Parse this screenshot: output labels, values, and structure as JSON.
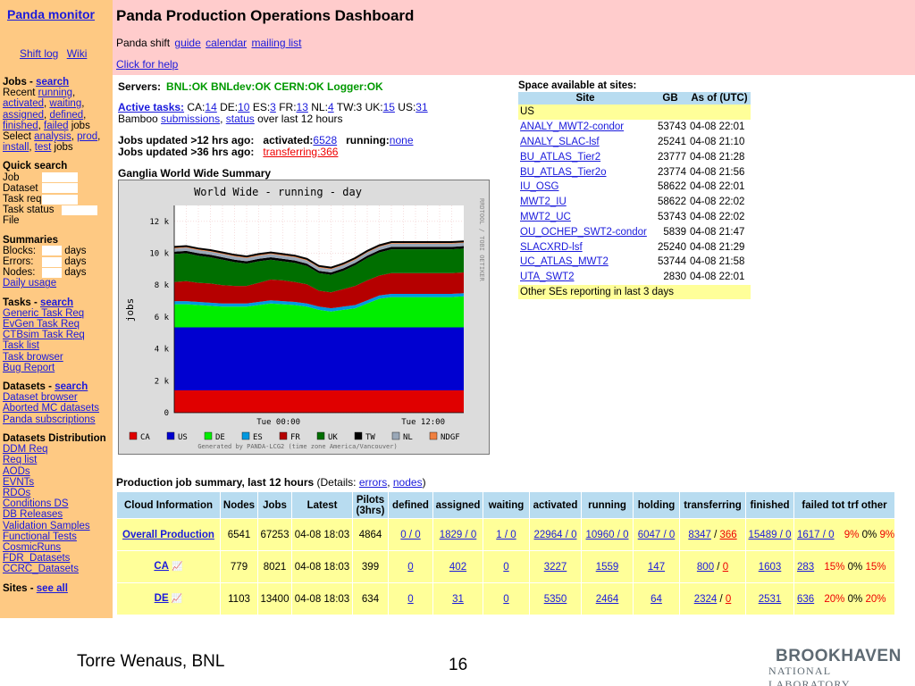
{
  "sidebar": {
    "brand": "Panda monitor",
    "shift_log": "Shift log",
    "wiki": "Wiki",
    "jobs": {
      "heading": "Jobs",
      "search": "search",
      "recent_prefix": "Recent",
      "running": "running",
      "activated": "activated",
      "waiting": "waiting",
      "assigned": "assigned",
      "defined": "defined",
      "finished": "finished",
      "failed": "failed",
      "jobs_word": "jobs",
      "select_prefix": "Select",
      "analysis": "analysis",
      "prod": "prod",
      "install": "install",
      "test": "test",
      "jobs_word2": "jobs"
    },
    "quick": {
      "heading": "Quick search",
      "fields": [
        "Job",
        "Dataset",
        "Task req",
        "Task status",
        "File"
      ]
    },
    "summaries": {
      "heading": "Summaries",
      "rows": [
        {
          "label": "Blocks:",
          "unit": "days"
        },
        {
          "label": "Errors:",
          "unit": "days"
        },
        {
          "label": "Nodes:",
          "unit": "days"
        }
      ],
      "daily": "Daily usage"
    },
    "tasks": {
      "heading": "Tasks",
      "search": "search",
      "links": [
        "Generic Task Req",
        "EvGen Task Req",
        "CTBsim Task Req",
        "Task list",
        "Task browser",
        "Bug Report"
      ]
    },
    "datasets": {
      "heading": "Datasets",
      "search": "search",
      "links": [
        "Dataset browser",
        "Aborted MC datasets",
        "Panda subscriptions"
      ]
    },
    "distribution": {
      "heading": "Datasets Distribution",
      "links": [
        "DDM Req",
        "Req list",
        "AODs",
        "EVNTs",
        "RDOs",
        "Conditions DS",
        "DB Releases",
        "Validation Samples",
        "Functional Tests",
        "CosmicRuns",
        "FDR_Datasets",
        "CCRC_Datasets"
      ]
    },
    "sites": {
      "heading": "Sites",
      "see_all": "see all"
    }
  },
  "header": {
    "title": "Panda Production Operations Dashboard",
    "shift_prefix": "Panda shift",
    "guide": "guide",
    "calendar": "calendar",
    "mailing": "mailing list",
    "help": "Click for help"
  },
  "servers": {
    "label": "Servers:",
    "status": "BNL:OK BNLdev:OK CERN:OK  Logger:OK"
  },
  "active_tasks": {
    "label": "Active tasks:",
    "items": [
      {
        "k": "CA:",
        "v": "14"
      },
      {
        "k": "DE:",
        "v": "10"
      },
      {
        "k": "ES:",
        "v": "3"
      },
      {
        "k": "FR:",
        "v": "13"
      },
      {
        "k": "NL:",
        "v": "4"
      },
      {
        "k": "TW:",
        "v": "3"
      },
      {
        "k": "UK:",
        "v": "15"
      },
      {
        "k": "US:",
        "v": "31"
      }
    ],
    "bamboo": "Bamboo",
    "submissions": "submissions",
    "status": "status",
    "suffix": "over last 12 hours"
  },
  "jobs_updated": {
    "line1_label": "Jobs updated >12 hrs ago:",
    "activated_label": "activated:",
    "activated_val": "6528",
    "running_label": "running:",
    "running_val": "none",
    "line2_label": "Jobs updated >36 hrs ago:",
    "transferring": "transferring:366"
  },
  "ganglia": {
    "heading": "Ganglia World Wide Summary",
    "plot_title": "World Wide - running - day",
    "side_text_left": "RRDTOOL / TOBI OETIKER",
    "footer_text": "Generated by PANDA-LCG2 (time zone America/Vancouver)"
  },
  "chart_data": {
    "type": "area",
    "title": "World Wide - running - day",
    "ylabel": "jobs",
    "xlabel": "",
    "x_ticks": [
      "Tue 00:00",
      "Tue 12:00"
    ],
    "y_ticks": [
      "0",
      "2 k",
      "4 k",
      "6 k",
      "8 k",
      "10 k",
      "12 k"
    ],
    "ylim": [
      0,
      13000
    ],
    "stacked": true,
    "legend_position": "bottom",
    "series": [
      {
        "name": "CA",
        "color": "#e00000",
        "values": [
          1400,
          1400,
          1400,
          1400,
          1400,
          1400,
          1400,
          1400,
          1400,
          1400,
          1400,
          1400,
          1400,
          1400,
          1400,
          1400,
          1400,
          1400,
          1400,
          1400,
          1400,
          1400,
          1400,
          1400,
          1400
        ]
      },
      {
        "name": "US",
        "color": "#0000d0",
        "values": [
          3950,
          3950,
          3950,
          3950,
          3950,
          3950,
          3950,
          3950,
          3950,
          3950,
          3950,
          3950,
          3950,
          3950,
          3950,
          3950,
          3950,
          3950,
          3950,
          3950,
          3950,
          3950,
          3950,
          3950,
          3950
        ]
      },
      {
        "name": "DE",
        "color": "#00ee00",
        "values": [
          1450,
          1450,
          1400,
          1350,
          1300,
          1300,
          1300,
          1400,
          1500,
          1450,
          1400,
          1300,
          1100,
          1000,
          1100,
          1200,
          1500,
          1800,
          1900,
          1900,
          1900,
          1900,
          1900,
          1900,
          1950
        ]
      },
      {
        "name": "ES",
        "color": "#0099e0",
        "values": [
          200,
          200,
          200,
          200,
          200,
          200,
          200,
          200,
          200,
          200,
          200,
          200,
          200,
          200,
          200,
          200,
          200,
          200,
          200,
          200,
          200,
          200,
          200,
          200,
          200
        ]
      },
      {
        "name": "FR",
        "color": "#b50000",
        "values": [
          1200,
          1250,
          1200,
          1200,
          1150,
          1100,
          1100,
          1200,
          1300,
          1300,
          1250,
          1200,
          1000,
          1000,
          1100,
          1200,
          1250,
          1250,
          1300,
          1300,
          1300,
          1300,
          1300,
          1300,
          1300
        ]
      },
      {
        "name": "UK",
        "color": "#006f00",
        "values": [
          1750,
          1750,
          1700,
          1650,
          1600,
          1500,
          1400,
          1350,
          1250,
          1200,
          1200,
          1150,
          1100,
          1100,
          1150,
          1300,
          1400,
          1450,
          1500,
          1500,
          1500,
          1500,
          1500,
          1500,
          1500
        ]
      },
      {
        "name": "TW",
        "color": "#000000",
        "values": [
          150,
          150,
          150,
          150,
          150,
          150,
          150,
          150,
          150,
          150,
          150,
          150,
          150,
          150,
          150,
          150,
          150,
          150,
          150,
          150,
          150,
          150,
          150,
          150,
          150
        ]
      },
      {
        "name": "NL",
        "color": "#9aa8b8",
        "values": [
          200,
          200,
          200,
          200,
          200,
          200,
          200,
          200,
          200,
          200,
          200,
          200,
          200,
          200,
          200,
          200,
          200,
          200,
          200,
          200,
          200,
          200,
          200,
          200,
          200
        ]
      },
      {
        "name": "NDGF",
        "color": "#f08040",
        "values": [
          100,
          100,
          100,
          100,
          100,
          100,
          100,
          100,
          100,
          100,
          100,
          100,
          100,
          100,
          100,
          100,
          100,
          100,
          100,
          100,
          100,
          100,
          100,
          100,
          100
        ]
      }
    ]
  },
  "space": {
    "heading": "Space available at sites:",
    "columns": [
      "Site",
      "GB",
      "As of (UTC)"
    ],
    "group_label": "US",
    "rows": [
      {
        "site": "ANALY_MWT2-condor",
        "gb": "53743",
        "asof": "04-08 22:01"
      },
      {
        "site": "ANALY_SLAC-lsf",
        "gb": "25241",
        "asof": "04-08 21:10"
      },
      {
        "site": "BU_ATLAS_Tier2",
        "gb": "23777",
        "asof": "04-08 21:28"
      },
      {
        "site": "BU_ATLAS_Tier2o",
        "gb": "23774",
        "asof": "04-08 21:56"
      },
      {
        "site": "IU_OSG",
        "gb": "58622",
        "asof": "04-08 22:01"
      },
      {
        "site": "MWT2_IU",
        "gb": "58622",
        "asof": "04-08 22:02"
      },
      {
        "site": "MWT2_UC",
        "gb": "53743",
        "asof": "04-08 22:02"
      },
      {
        "site": "OU_OCHEP_SWT2-condor",
        "gb": "5839",
        "asof": "04-08 21:47"
      },
      {
        "site": "SLACXRD-lsf",
        "gb": "25240",
        "asof": "04-08 21:29"
      },
      {
        "site": "UC_ATLAS_MWT2",
        "gb": "53744",
        "asof": "04-08 21:58"
      },
      {
        "site": "UTA_SWT2",
        "gb": "2830",
        "asof": "04-08 22:01"
      }
    ],
    "footer": "Other SEs reporting in last 3 days"
  },
  "production": {
    "title": "Production job summary, last 12 hours",
    "details_prefix": "(Details:",
    "errors": "errors",
    "nodes": "nodes",
    "details_suffix": ")",
    "columns": [
      "Cloud Information",
      "Nodes",
      "Jobs",
      "Latest",
      "Pilots (3hrs)",
      "defined",
      "assigned",
      "waiting",
      "activated",
      "running",
      "holding",
      "transferring",
      "finished",
      "failed tot trf other"
    ],
    "rows": [
      {
        "cloud": "Overall Production",
        "nodes": "6541",
        "jobs": "67253",
        "latest": "04-08 18:03",
        "pilots": "4864",
        "defined": "0 / 0",
        "assigned": "1829 / 0",
        "waiting": "1 / 0",
        "activated": "22964 / 0",
        "running": "10960 / 0",
        "holding": "6047 / 0",
        "transferring_a": "8347",
        "transferring_b": "366",
        "finished": "15489 / 0",
        "failed": "1617 / 0",
        "p_tot": "9%",
        "p_trf": "0%",
        "p_other": "9%"
      },
      {
        "cloud": "CA",
        "nodes": "779",
        "jobs": "8021",
        "latest": "04-08 18:03",
        "pilots": "399",
        "defined": "0",
        "assigned": "402",
        "waiting": "0",
        "activated": "3227",
        "running": "1559",
        "holding": "147",
        "transferring_a": "800",
        "transferring_b": "0",
        "finished": "1603",
        "failed": "283",
        "p_tot": "15%",
        "p_trf": "0%",
        "p_other": "15%"
      },
      {
        "cloud": "DE",
        "nodes": "1103",
        "jobs": "13400",
        "latest": "04-08 18:03",
        "pilots": "634",
        "defined": "0",
        "assigned": "31",
        "waiting": "0",
        "activated": "5350",
        "running": "2464",
        "holding": "64",
        "transferring_a": "2324",
        "transferring_b": "0",
        "finished": "2531",
        "failed": "636",
        "p_tot": "20%",
        "p_trf": "0%",
        "p_other": "20%"
      }
    ]
  },
  "footer": {
    "author": "Torre Wenaus, BNL",
    "page": "16",
    "logo_main": "BROOKHAVEN",
    "logo_sub": "NATIONAL LABORATORY"
  }
}
